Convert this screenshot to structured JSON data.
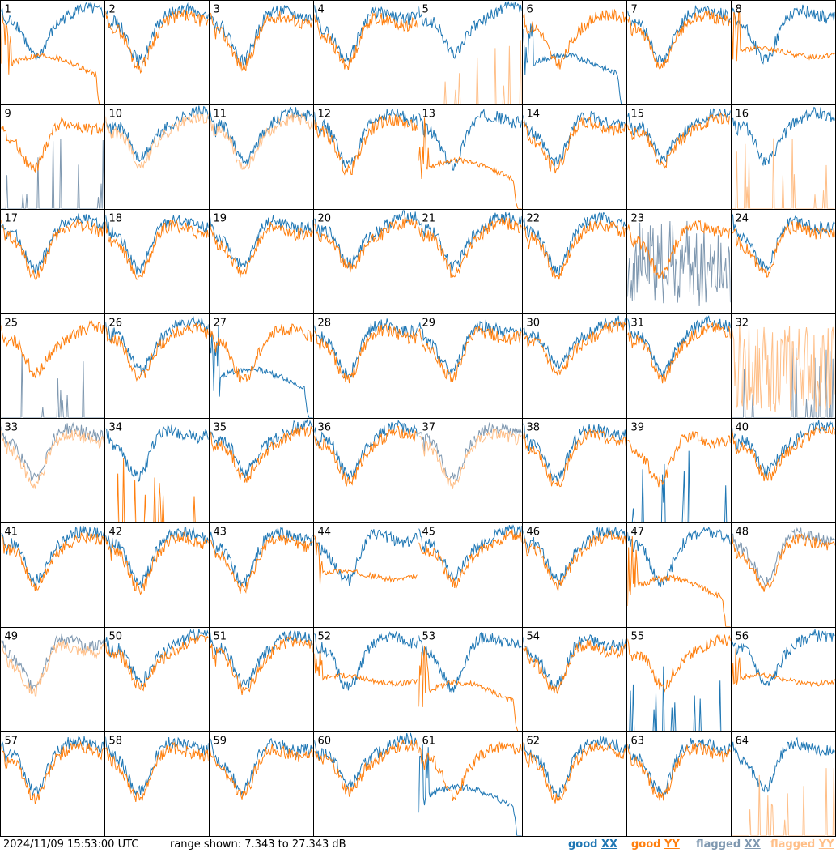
{
  "footer": {
    "timestamp": "2024/11/09 15:53:00 UTC",
    "range_text": "range shown: 7.343 to 27.343 dB",
    "legend": [
      {
        "label": "good",
        "pol": "XX",
        "color": "#1f77b4"
      },
      {
        "label": "good",
        "pol": "YY",
        "color": "#ff7f0e"
      },
      {
        "label": "flagged",
        "pol": "XX",
        "color": "#7f98b0"
      },
      {
        "label": "flagged",
        "pol": "YY",
        "color": "#ffbf88"
      }
    ]
  },
  "chart_data": {
    "type": "line",
    "grid": {
      "rows": 8,
      "cols": 8
    },
    "ylim": [
      7.343,
      27.343
    ],
    "yunit": "dB",
    "colors": {
      "good_xx": "#1f77b4",
      "good_yy": "#ff7f0e",
      "flagged_xx": "#7f98b0",
      "flagged_yy": "#ffbf88"
    },
    "tiles": [
      {
        "n": 1,
        "xx": "good",
        "yy": "good",
        "xx_shape": "band",
        "yy_shape": "droop"
      },
      {
        "n": 2,
        "xx": "good",
        "yy": "good",
        "xx_shape": "band",
        "yy_shape": "band"
      },
      {
        "n": 3,
        "xx": "good",
        "yy": "good",
        "xx_shape": "band",
        "yy_shape": "band"
      },
      {
        "n": 4,
        "xx": "good",
        "yy": "good",
        "xx_shape": "band",
        "yy_shape": "band"
      },
      {
        "n": 5,
        "xx": "good",
        "yy": "flagged",
        "xx_shape": "band",
        "yy_shape": "spikes"
      },
      {
        "n": 6,
        "xx": "good",
        "yy": "good",
        "xx_shape": "droop",
        "yy_shape": "band"
      },
      {
        "n": 7,
        "xx": "good",
        "yy": "good",
        "xx_shape": "band",
        "yy_shape": "band"
      },
      {
        "n": 8,
        "xx": "good",
        "yy": "good",
        "xx_shape": "band",
        "yy_shape": "flat"
      },
      {
        "n": 9,
        "xx": "flagged",
        "yy": "good",
        "xx_shape": "spikes",
        "yy_shape": "band"
      },
      {
        "n": 10,
        "xx": "good",
        "yy": "flagged",
        "xx_shape": "band",
        "yy_shape": "band"
      },
      {
        "n": 11,
        "xx": "good",
        "yy": "flagged",
        "xx_shape": "band",
        "yy_shape": "band"
      },
      {
        "n": 12,
        "xx": "good",
        "yy": "good",
        "xx_shape": "band",
        "yy_shape": "band"
      },
      {
        "n": 13,
        "xx": "good",
        "yy": "good",
        "xx_shape": "band",
        "yy_shape": "droop"
      },
      {
        "n": 14,
        "xx": "good",
        "yy": "good",
        "xx_shape": "band",
        "yy_shape": "band"
      },
      {
        "n": 15,
        "xx": "good",
        "yy": "good",
        "xx_shape": "band",
        "yy_shape": "band"
      },
      {
        "n": 16,
        "xx": "good",
        "yy": "flagged",
        "xx_shape": "band",
        "yy_shape": "spikes"
      },
      {
        "n": 17,
        "xx": "good",
        "yy": "good",
        "xx_shape": "band",
        "yy_shape": "band"
      },
      {
        "n": 18,
        "xx": "good",
        "yy": "good",
        "xx_shape": "band",
        "yy_shape": "band"
      },
      {
        "n": 19,
        "xx": "good",
        "yy": "good",
        "xx_shape": "band",
        "yy_shape": "band"
      },
      {
        "n": 20,
        "xx": "good",
        "yy": "good",
        "xx_shape": "band",
        "yy_shape": "band"
      },
      {
        "n": 21,
        "xx": "good",
        "yy": "good",
        "xx_shape": "band",
        "yy_shape": "band"
      },
      {
        "n": 22,
        "xx": "good",
        "yy": "good",
        "xx_shape": "band",
        "yy_shape": "band"
      },
      {
        "n": 23,
        "xx": "flagged",
        "yy": "good",
        "xx_shape": "noise",
        "yy_shape": "band"
      },
      {
        "n": 24,
        "xx": "good",
        "yy": "good",
        "xx_shape": "band",
        "yy_shape": "band"
      },
      {
        "n": 25,
        "xx": "flagged",
        "yy": "good",
        "xx_shape": "spikes",
        "yy_shape": "band"
      },
      {
        "n": 26,
        "xx": "good",
        "yy": "good",
        "xx_shape": "band",
        "yy_shape": "band"
      },
      {
        "n": 27,
        "xx": "good",
        "yy": "good",
        "xx_shape": "droop",
        "yy_shape": "band"
      },
      {
        "n": 28,
        "xx": "good",
        "yy": "good",
        "xx_shape": "band",
        "yy_shape": "band"
      },
      {
        "n": 29,
        "xx": "good",
        "yy": "good",
        "xx_shape": "band",
        "yy_shape": "band"
      },
      {
        "n": 30,
        "xx": "good",
        "yy": "good",
        "xx_shape": "band",
        "yy_shape": "band"
      },
      {
        "n": 31,
        "xx": "good",
        "yy": "good",
        "xx_shape": "band",
        "yy_shape": "band"
      },
      {
        "n": 32,
        "xx": "flagged",
        "yy": "flagged",
        "xx_shape": "spikes",
        "yy_shape": "noise"
      },
      {
        "n": 33,
        "xx": "flagged",
        "yy": "flagged",
        "xx_shape": "band",
        "yy_shape": "band"
      },
      {
        "n": 34,
        "xx": "good",
        "yy": "good",
        "xx_shape": "band",
        "yy_shape": "spikes"
      },
      {
        "n": 35,
        "xx": "good",
        "yy": "good",
        "xx_shape": "band",
        "yy_shape": "band"
      },
      {
        "n": 36,
        "xx": "good",
        "yy": "good",
        "xx_shape": "band",
        "yy_shape": "band"
      },
      {
        "n": 37,
        "xx": "flagged",
        "yy": "flagged",
        "xx_shape": "band",
        "yy_shape": "band"
      },
      {
        "n": 38,
        "xx": "good",
        "yy": "good",
        "xx_shape": "band",
        "yy_shape": "band"
      },
      {
        "n": 39,
        "xx": "good",
        "yy": "good",
        "xx_shape": "spikes",
        "yy_shape": "band"
      },
      {
        "n": 40,
        "xx": "good",
        "yy": "good",
        "xx_shape": "band",
        "yy_shape": "band"
      },
      {
        "n": 41,
        "xx": "good",
        "yy": "good",
        "xx_shape": "band",
        "yy_shape": "band"
      },
      {
        "n": 42,
        "xx": "good",
        "yy": "good",
        "xx_shape": "band",
        "yy_shape": "band"
      },
      {
        "n": 43,
        "xx": "good",
        "yy": "good",
        "xx_shape": "band",
        "yy_shape": "band"
      },
      {
        "n": 44,
        "xx": "good",
        "yy": "good",
        "xx_shape": "band",
        "yy_shape": "flat"
      },
      {
        "n": 45,
        "xx": "good",
        "yy": "good",
        "xx_shape": "band",
        "yy_shape": "band"
      },
      {
        "n": 46,
        "xx": "good",
        "yy": "good",
        "xx_shape": "band",
        "yy_shape": "band"
      },
      {
        "n": 47,
        "xx": "good",
        "yy": "good",
        "xx_shape": "band",
        "yy_shape": "droop"
      },
      {
        "n": 48,
        "xx": "flagged",
        "yy": "good",
        "xx_shape": "band",
        "yy_shape": "band"
      },
      {
        "n": 49,
        "xx": "flagged",
        "yy": "flagged",
        "xx_shape": "band",
        "yy_shape": "band"
      },
      {
        "n": 50,
        "xx": "good",
        "yy": "good",
        "xx_shape": "band",
        "yy_shape": "band"
      },
      {
        "n": 51,
        "xx": "good",
        "yy": "good",
        "xx_shape": "band",
        "yy_shape": "band"
      },
      {
        "n": 52,
        "xx": "good",
        "yy": "good",
        "xx_shape": "band",
        "yy_shape": "flat"
      },
      {
        "n": 53,
        "xx": "good",
        "yy": "good",
        "xx_shape": "band",
        "yy_shape": "droop"
      },
      {
        "n": 54,
        "xx": "good",
        "yy": "good",
        "xx_shape": "band",
        "yy_shape": "band"
      },
      {
        "n": 55,
        "xx": "good",
        "yy": "good",
        "xx_shape": "spikes",
        "yy_shape": "band"
      },
      {
        "n": 56,
        "xx": "good",
        "yy": "good",
        "xx_shape": "band",
        "yy_shape": "flat"
      },
      {
        "n": 57,
        "xx": "good",
        "yy": "good",
        "xx_shape": "band",
        "yy_shape": "band"
      },
      {
        "n": 58,
        "xx": "good",
        "yy": "good",
        "xx_shape": "band",
        "yy_shape": "band"
      },
      {
        "n": 59,
        "xx": "good",
        "yy": "good",
        "xx_shape": "band",
        "yy_shape": "band"
      },
      {
        "n": 60,
        "xx": "good",
        "yy": "good",
        "xx_shape": "band",
        "yy_shape": "band"
      },
      {
        "n": 61,
        "xx": "good",
        "yy": "good",
        "xx_shape": "droop",
        "yy_shape": "band"
      },
      {
        "n": 62,
        "xx": "good",
        "yy": "good",
        "xx_shape": "band",
        "yy_shape": "band"
      },
      {
        "n": 63,
        "xx": "good",
        "yy": "good",
        "xx_shape": "band",
        "yy_shape": "band"
      },
      {
        "n": 64,
        "xx": "good",
        "yy": "flagged",
        "xx_shape": "band",
        "yy_shape": "spikes"
      }
    ]
  }
}
